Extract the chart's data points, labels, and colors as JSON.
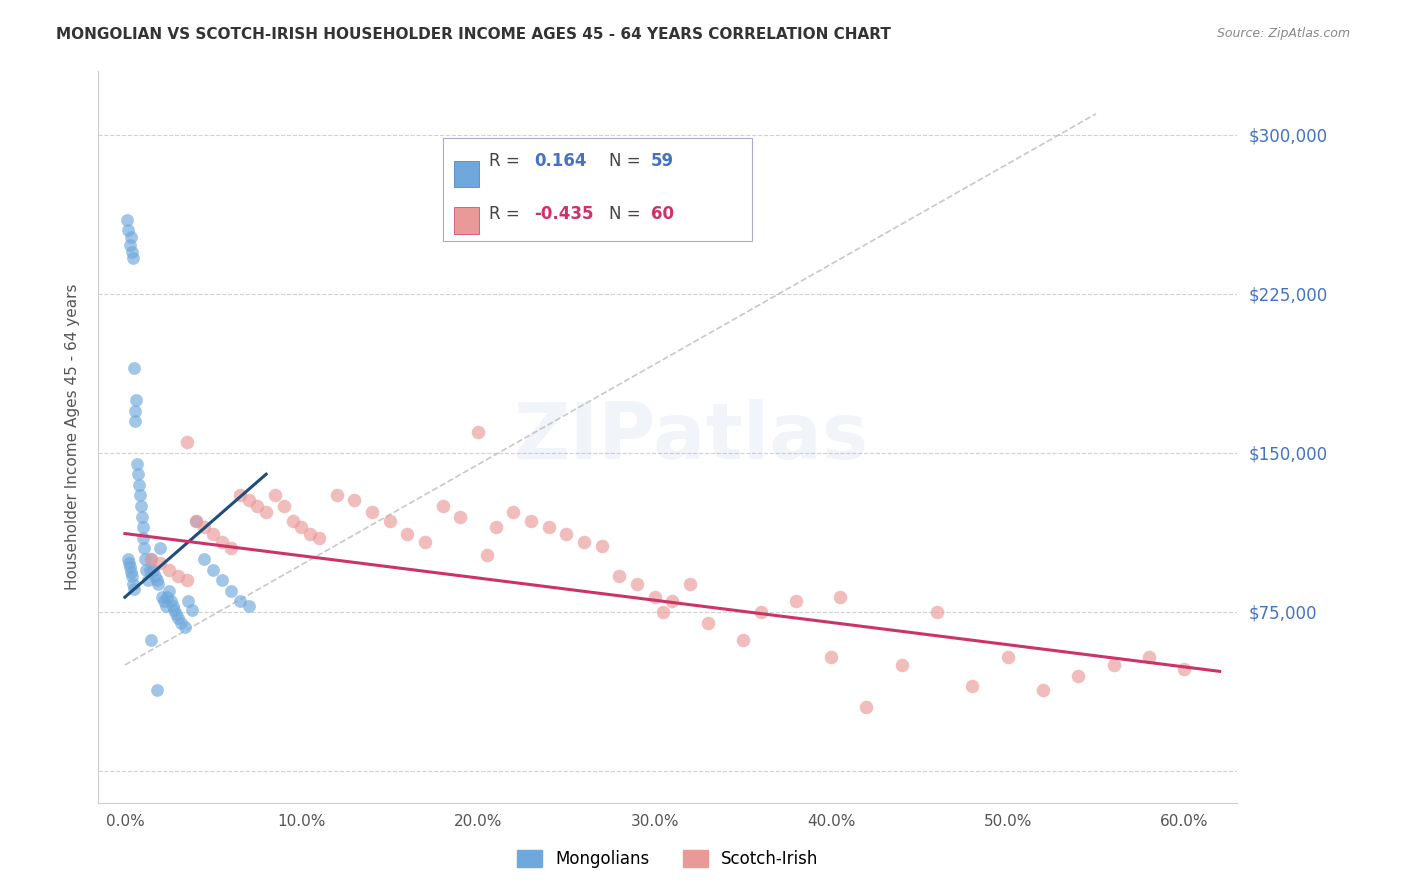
{
  "title": "MONGOLIAN VS SCOTCH-IRISH HOUSEHOLDER INCOME AGES 45 - 64 YEARS CORRELATION CHART",
  "source": "Source: ZipAtlas.com",
  "ylabel": "Householder Income Ages 45 - 64 years",
  "xlabel_ticks": [
    "0.0%",
    "10.0%",
    "20.0%",
    "30.0%",
    "40.0%",
    "50.0%",
    "60.0%"
  ],
  "xlabel_vals": [
    0.0,
    10.0,
    20.0,
    30.0,
    40.0,
    50.0,
    60.0
  ],
  "ytick_vals": [
    0,
    75000,
    150000,
    225000,
    300000
  ],
  "ytick_labels": [
    "",
    "$75,000",
    "$150,000",
    "$225,000",
    "$300,000"
  ],
  "xlim": [
    -1.5,
    63
  ],
  "ylim": [
    -15000,
    330000
  ],
  "mongolian_R": 0.164,
  "mongolian_N": 59,
  "scotchirish_R": -0.435,
  "scotchirish_N": 60,
  "blue_color": "#6fa8dc",
  "pink_color": "#ea9999",
  "blue_line_color": "#1f4e79",
  "pink_line_color": "#cc3366",
  "mongolians_x": [
    0.1,
    0.2,
    0.3,
    0.35,
    0.4,
    0.45,
    0.5,
    0.55,
    0.6,
    0.65,
    0.7,
    0.75,
    0.8,
    0.85,
    0.9,
    0.95,
    1.0,
    1.05,
    1.1,
    1.15,
    1.2,
    1.3,
    1.4,
    1.5,
    1.6,
    1.7,
    1.8,
    1.9,
    2.0,
    2.1,
    2.2,
    2.3,
    2.4,
    2.5,
    2.6,
    2.7,
    2.8,
    2.9,
    3.0,
    3.2,
    3.4,
    3.6,
    3.8,
    4.0,
    4.5,
    5.0,
    5.5,
    6.0,
    6.5,
    7.0,
    0.2,
    0.25,
    0.3,
    0.35,
    0.4,
    0.45,
    0.5,
    1.8,
    1.5
  ],
  "mongolians_y": [
    260000,
    255000,
    248000,
    252000,
    245000,
    242000,
    190000,
    170000,
    165000,
    175000,
    145000,
    140000,
    135000,
    130000,
    125000,
    120000,
    115000,
    110000,
    105000,
    100000,
    95000,
    90000,
    95000,
    100000,
    95000,
    92000,
    90000,
    88000,
    105000,
    82000,
    80000,
    78000,
    82000,
    85000,
    80000,
    78000,
    76000,
    74000,
    72000,
    70000,
    68000,
    80000,
    76000,
    118000,
    100000,
    95000,
    90000,
    85000,
    80000,
    78000,
    100000,
    98000,
    96000,
    94000,
    92000,
    88000,
    86000,
    38000,
    62000
  ],
  "scotchirish_x": [
    1.5,
    2.0,
    2.5,
    3.0,
    3.5,
    4.0,
    4.5,
    5.0,
    5.5,
    6.0,
    6.5,
    7.0,
    7.5,
    8.0,
    8.5,
    9.0,
    9.5,
    10.0,
    10.5,
    11.0,
    12.0,
    13.0,
    14.0,
    15.0,
    16.0,
    17.0,
    18.0,
    19.0,
    20.0,
    21.0,
    22.0,
    23.0,
    24.0,
    25.0,
    26.0,
    27.0,
    28.0,
    29.0,
    30.0,
    31.0,
    32.0,
    33.0,
    35.0,
    36.0,
    38.0,
    40.0,
    42.0,
    44.0,
    46.0,
    48.0,
    50.0,
    52.0,
    54.0,
    56.0,
    58.0,
    60.0,
    3.5,
    20.5,
    30.5,
    40.5
  ],
  "scotchirish_y": [
    100000,
    98000,
    95000,
    92000,
    90000,
    118000,
    115000,
    112000,
    108000,
    105000,
    130000,
    128000,
    125000,
    122000,
    130000,
    125000,
    118000,
    115000,
    112000,
    110000,
    130000,
    128000,
    122000,
    118000,
    112000,
    108000,
    125000,
    120000,
    160000,
    115000,
    122000,
    118000,
    115000,
    112000,
    108000,
    106000,
    92000,
    88000,
    82000,
    80000,
    88000,
    70000,
    62000,
    75000,
    80000,
    54000,
    30000,
    50000,
    75000,
    40000,
    54000,
    38000,
    45000,
    50000,
    54000,
    48000,
    155000,
    102000,
    75000,
    82000
  ]
}
